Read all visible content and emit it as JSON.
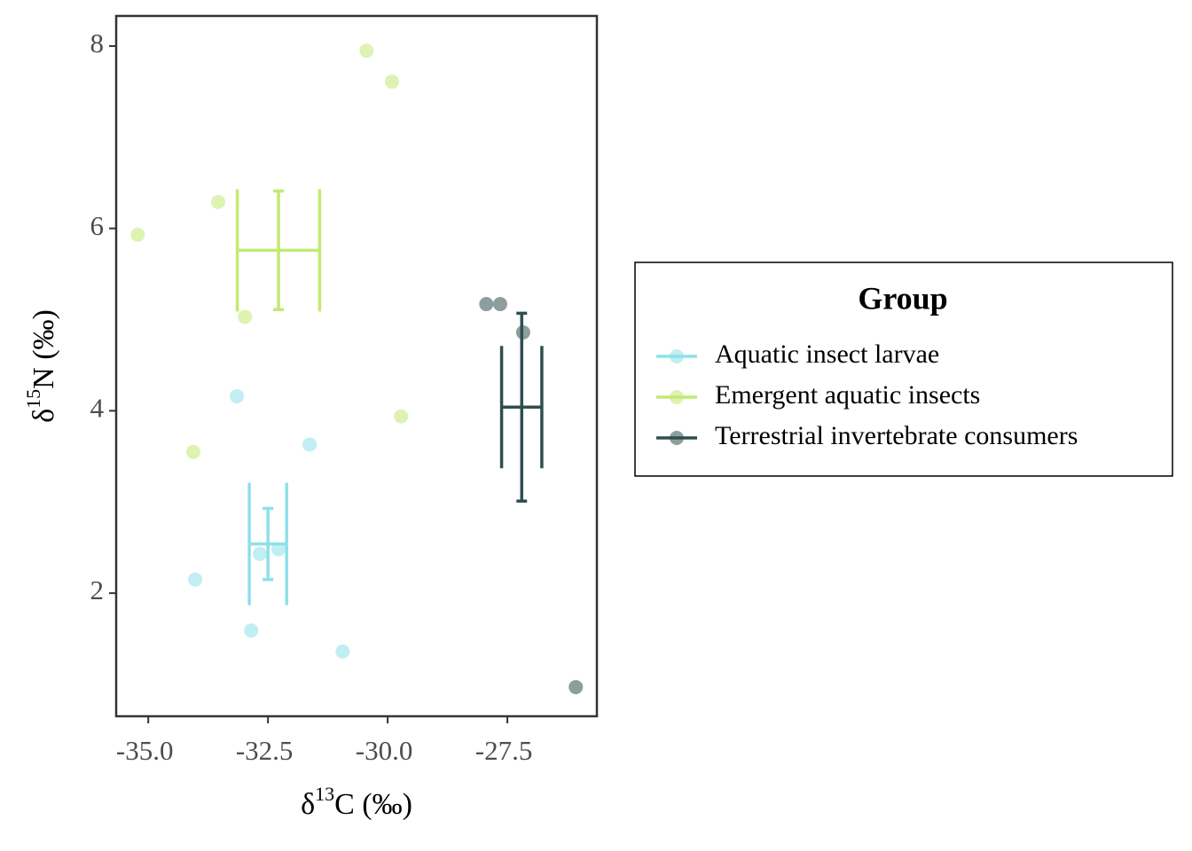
{
  "chart_data": {
    "type": "scatter",
    "x_label": {
      "prefix": "δ",
      "sup": "13",
      "suffix": "C (‰)"
    },
    "y_label": {
      "prefix": "δ",
      "sup": "15",
      "suffix": "N (‰)"
    },
    "legend_title": "Group",
    "legend": "right",
    "xlim": [
      -35.67,
      -25.63
    ],
    "ylim": [
      0.65,
      8.33
    ],
    "xticks": [
      {
        "value": -35,
        "label": "-35.0"
      },
      {
        "value": -32.5,
        "label": "-32.5"
      },
      {
        "value": -30,
        "label": "-30.0"
      },
      {
        "value": -27.5,
        "label": "-27.5"
      }
    ],
    "yticks": [
      2,
      4,
      6,
      8
    ],
    "series": [
      {
        "name": "Aquatic insect larvae",
        "color": "#8ee0ea",
        "x": [
          -33.15,
          -31.63,
          -34.02,
          -32.67,
          -32.28,
          -32.85,
          -30.94
        ],
        "values": [
          4.16,
          3.63,
          2.15,
          2.43,
          2.48,
          1.59,
          1.36
        ],
        "mean_x": -32.5,
        "mean_y": 2.54,
        "x_error": 0.39,
        "y_error": 0.39
      },
      {
        "name": "Emergent aquatic insects",
        "color": "#c2ea72",
        "x": [
          -30.44,
          -29.91,
          -33.54,
          -35.22,
          -32.98,
          -29.72,
          -34.06
        ],
        "values": [
          7.95,
          7.61,
          6.29,
          5.93,
          5.03,
          3.94,
          3.55
        ],
        "mean_x": -32.28,
        "mean_y": 5.76,
        "x_error": 0.86,
        "y_error": 0.65
      },
      {
        "name": "Terrestrial invertebrate consumers",
        "color": "#2f4f4f",
        "x": [
          -27.94,
          -27.65,
          -27.17,
          -26.07
        ],
        "values": [
          5.17,
          5.17,
          4.86,
          0.97
        ],
        "mean_x": -27.2,
        "mean_y": 4.04,
        "x_error": 0.42,
        "y_error": 1.03
      }
    ]
  }
}
